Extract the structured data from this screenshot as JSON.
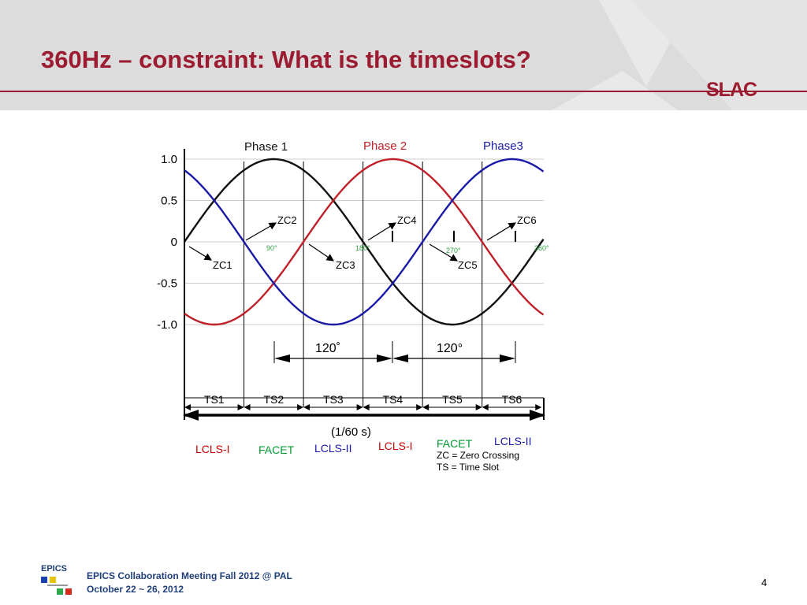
{
  "slide": {
    "title": "360Hz – constraint: What is the timeslots?",
    "logo_text": "SLAC",
    "page_number": "4"
  },
  "footer": {
    "logo_text": "EPICS",
    "line1": "EPICS Collaboration Meeting Fall 2012 @ PAL",
    "line2": "October 22 ~ 26, 2012"
  },
  "diagram": {
    "y_ticks": [
      "1.0",
      "0.5",
      "0",
      "-0.5",
      "-1.0"
    ],
    "phases": [
      {
        "label": "Phase 1",
        "color": "#111111",
        "phase_deg": 0
      },
      {
        "label": "Phase 2",
        "color": "#c0202a",
        "phase_deg": -120
      },
      {
        "label": "Phase3",
        "color": "#1a1aa6",
        "phase_deg": 120
      }
    ],
    "zero_crossings": [
      "ZC1",
      "ZC2",
      "ZC3",
      "ZC4",
      "ZC5",
      "ZC6"
    ],
    "degree_marks": [
      "90°",
      "180°",
      "270°",
      "360°"
    ],
    "spans": [
      "120˚",
      "120°"
    ],
    "timeslots": [
      "TS1",
      "TS2",
      "TS3",
      "TS4",
      "TS5",
      "TS6"
    ],
    "period_label": "(1/60 s)",
    "legend": [
      "ZC = Zero Crossing",
      "TS = Time Slot"
    ],
    "assignments": [
      {
        "label": "LCLS-I",
        "color": "#cc0000"
      },
      {
        "label": "FACET",
        "color": "#009933"
      },
      {
        "label": "LCLS-II",
        "color": "#1a1aa6"
      },
      {
        "label": "LCLS-I",
        "color": "#cc0000"
      },
      {
        "label": "FACET",
        "color": "#009933"
      },
      {
        "label": "LCLS-II",
        "color": "#1a1aa6"
      }
    ],
    "colors": {
      "title": "#9b1b30",
      "grid": "#bbbbbb",
      "degree": "#2e9e3e"
    }
  }
}
